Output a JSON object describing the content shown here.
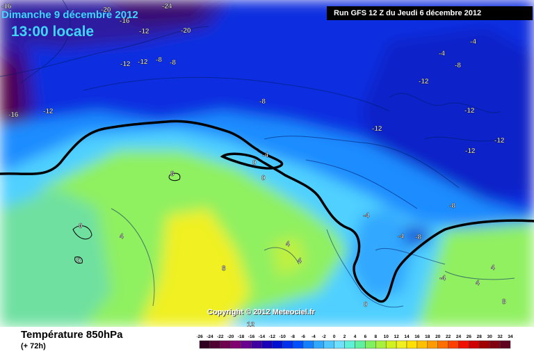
{
  "header": {
    "date": "Dimanche 9 décembre 2012",
    "time": "13:00 locale",
    "run": "Run GFS 12 Z du Jeudi 6 décembre 2012"
  },
  "map": {
    "copyright": "Copyright © 2012 Meteociel.fr",
    "isotherm_labels": [
      "-16",
      "-20",
      "-24",
      "-16",
      "-12",
      "-20",
      "-12",
      "-8",
      "-12",
      "-8",
      "-16",
      "-12",
      "-8",
      "-4",
      "-8",
      "-4",
      "-12",
      "-12",
      "-12",
      "-12",
      "-12",
      "-4",
      "0",
      "0",
      "8",
      "0",
      "4",
      "0",
      "4",
      "8",
      "4",
      "-4",
      "-4",
      "-8",
      "-8",
      "-4",
      "4",
      "4",
      "0",
      "8",
      "12"
    ]
  },
  "legend": {
    "parameter": "Température 850hPa",
    "lead": "(+ 72h)",
    "ticks": [
      "-26",
      "-24",
      "-22",
      "-20",
      "-18",
      "-16",
      "-14",
      "-12",
      "-10",
      "-8",
      "-6",
      "-4",
      "-2",
      "0",
      "2",
      "4",
      "6",
      "8",
      "10",
      "12",
      "14",
      "16",
      "18",
      "20",
      "22",
      "24",
      "26",
      "28",
      "30",
      "32",
      "34"
    ],
    "colors": [
      "#300020",
      "#500030",
      "#700050",
      "#800070",
      "#6a0090",
      "#4000a0",
      "#1a00b8",
      "#0010d0",
      "#0030ee",
      "#0050ff",
      "#1480ff",
      "#30a8ff",
      "#50c8ff",
      "#70e0ff",
      "#60f0d8",
      "#60f0a0",
      "#80f060",
      "#a8f040",
      "#d0f020",
      "#f0f020",
      "#ffe000",
      "#ffc000",
      "#ff9a00",
      "#ff7000",
      "#ff4000",
      "#f01000",
      "#d00000",
      "#a00000",
      "#800010",
      "#600020"
    ]
  }
}
